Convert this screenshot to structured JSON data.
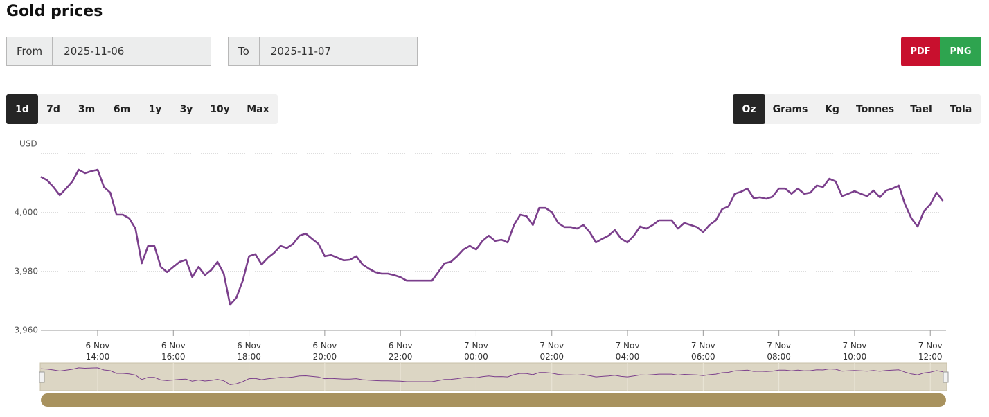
{
  "header": {
    "title": "Gold prices"
  },
  "date_range": {
    "from_label": "From",
    "from_value": "2025-11-06",
    "to_label": "To",
    "to_value": "2025-11-07"
  },
  "export_buttons": [
    "PDF",
    "PNG"
  ],
  "range_buttons": {
    "items": [
      "1d",
      "7d",
      "3m",
      "6m",
      "1y",
      "3y",
      "10y",
      "Max"
    ],
    "selected": 0
  },
  "unit_buttons": {
    "items": [
      "Oz",
      "Grams",
      "Kg",
      "Tonnes",
      "Tael",
      "Tola"
    ],
    "selected": 0
  },
  "chart_data": {
    "type": "line",
    "y_label": "USD",
    "color": "#7b3f8c",
    "grid": true,
    "ylim": [
      3960,
      4020
    ],
    "yticks": [
      {
        "value": 3960,
        "label": "3,960"
      },
      {
        "value": 3980,
        "label": "3,980"
      },
      {
        "value": 4000,
        "label": "4,000"
      }
    ],
    "xlim": [
      "2025-11-06T12:30",
      "2025-11-07T12:25"
    ],
    "xticks": [
      {
        "value": "2025-11-06T14:00",
        "label": "6 Nov\n14:00"
      },
      {
        "value": "2025-11-06T16:00",
        "label": "6 Nov\n16:00"
      },
      {
        "value": "2025-11-06T18:00",
        "label": "6 Nov\n18:00"
      },
      {
        "value": "2025-11-06T20:00",
        "label": "6 Nov\n20:00"
      },
      {
        "value": "2025-11-06T22:00",
        "label": "6 Nov\n22:00"
      },
      {
        "value": "2025-11-07T00:00",
        "label": "7 Nov\n00:00"
      },
      {
        "value": "2025-11-07T02:00",
        "label": "7 Nov\n02:00"
      },
      {
        "value": "2025-11-07T04:00",
        "label": "7 Nov\n04:00"
      },
      {
        "value": "2025-11-07T06:00",
        "label": "7 Nov\n06:00"
      },
      {
        "value": "2025-11-07T08:00",
        "label": "7 Nov\n08:00"
      },
      {
        "value": "2025-11-07T10:00",
        "label": "7 Nov\n10:00"
      },
      {
        "value": "2025-11-07T12:00",
        "label": "7 Nov\n12:00"
      }
    ],
    "x": [
      "2025-11-06T12:30",
      "2025-11-06T12:40",
      "2025-11-06T12:50",
      "2025-11-06T13:00",
      "2025-11-06T13:10",
      "2025-11-06T13:20",
      "2025-11-06T13:30",
      "2025-11-06T13:40",
      "2025-11-06T13:50",
      "2025-11-06T14:00",
      "2025-11-06T14:10",
      "2025-11-06T14:20",
      "2025-11-06T14:30",
      "2025-11-06T14:40",
      "2025-11-06T14:50",
      "2025-11-06T15:00",
      "2025-11-06T15:10",
      "2025-11-06T15:20",
      "2025-11-06T15:30",
      "2025-11-06T15:40",
      "2025-11-06T15:50",
      "2025-11-06T16:00",
      "2025-11-06T16:10",
      "2025-11-06T16:20",
      "2025-11-06T16:30",
      "2025-11-06T16:40",
      "2025-11-06T16:50",
      "2025-11-06T17:00",
      "2025-11-06T17:10",
      "2025-11-06T17:20",
      "2025-11-06T17:30",
      "2025-11-06T17:40",
      "2025-11-06T17:50",
      "2025-11-06T18:00",
      "2025-11-06T18:10",
      "2025-11-06T18:20",
      "2025-11-06T18:30",
      "2025-11-06T18:40",
      "2025-11-06T18:50",
      "2025-11-06T19:00",
      "2025-11-06T19:10",
      "2025-11-06T19:20",
      "2025-11-06T19:30",
      "2025-11-06T19:40",
      "2025-11-06T19:50",
      "2025-11-06T20:00",
      "2025-11-06T20:10",
      "2025-11-06T20:20",
      "2025-11-06T20:30",
      "2025-11-06T20:40",
      "2025-11-06T20:50",
      "2025-11-06T21:00",
      "2025-11-06T21:10",
      "2025-11-06T21:20",
      "2025-11-06T21:30",
      "2025-11-06T21:40",
      "2025-11-06T21:50",
      "2025-11-06T22:00",
      "2025-11-06T22:10",
      "2025-11-06T22:20",
      "2025-11-06T22:30",
      "2025-11-06T22:40",
      "2025-11-06T22:50",
      "2025-11-06T23:00",
      "2025-11-06T23:10",
      "2025-11-06T23:20",
      "2025-11-06T23:30",
      "2025-11-06T23:40",
      "2025-11-06T23:50",
      "2025-11-07T00:00",
      "2025-11-07T00:10",
      "2025-11-07T00:20",
      "2025-11-07T00:30",
      "2025-11-07T00:40",
      "2025-11-07T00:50",
      "2025-11-07T01:00",
      "2025-11-07T01:10",
      "2025-11-07T01:20",
      "2025-11-07T01:30",
      "2025-11-07T01:40",
      "2025-11-07T01:50",
      "2025-11-07T02:00",
      "2025-11-07T02:10",
      "2025-11-07T02:20",
      "2025-11-07T02:30",
      "2025-11-07T02:40",
      "2025-11-07T02:50",
      "2025-11-07T03:00",
      "2025-11-07T03:10",
      "2025-11-07T03:20",
      "2025-11-07T03:30",
      "2025-11-07T03:40",
      "2025-11-07T03:50",
      "2025-11-07T04:00",
      "2025-11-07T04:10",
      "2025-11-07T04:20",
      "2025-11-07T04:30",
      "2025-11-07T04:40",
      "2025-11-07T04:50",
      "2025-11-07T05:00",
      "2025-11-07T05:10",
      "2025-11-07T05:20",
      "2025-11-07T05:30",
      "2025-11-07T05:40",
      "2025-11-07T05:50",
      "2025-11-07T06:00",
      "2025-11-07T06:10",
      "2025-11-07T06:20",
      "2025-11-07T06:30",
      "2025-11-07T06:40",
      "2025-11-07T06:50",
      "2025-11-07T07:00",
      "2025-11-07T07:10",
      "2025-11-07T07:20",
      "2025-11-07T07:30",
      "2025-11-07T07:40",
      "2025-11-07T07:50",
      "2025-11-07T08:00",
      "2025-11-07T08:10",
      "2025-11-07T08:20",
      "2025-11-07T08:30",
      "2025-11-07T08:40",
      "2025-11-07T08:50",
      "2025-11-07T09:00",
      "2025-11-07T09:10",
      "2025-11-07T09:20",
      "2025-11-07T09:30",
      "2025-11-07T09:40",
      "2025-11-07T09:50",
      "2025-11-07T10:00",
      "2025-11-07T10:10",
      "2025-11-07T10:20",
      "2025-11-07T10:30",
      "2025-11-07T10:40",
      "2025-11-07T10:50",
      "2025-11-07T11:00",
      "2025-11-07T11:10",
      "2025-11-07T11:20",
      "2025-11-07T11:30",
      "2025-11-07T11:40",
      "2025-11-07T11:50",
      "2025-11-07T12:00",
      "2025-11-07T12:10",
      "2025-11-07T12:20"
    ],
    "values": [
      4012.2,
      4011,
      4008.7,
      4005.9,
      4008.2,
      4010.6,
      4014.6,
      4013.4,
      4014.1,
      4014.6,
      4008.7,
      4006.8,
      3999.3,
      3999.3,
      3998.1,
      3994.6,
      3982.8,
      3988.7,
      3988.7,
      3981.6,
      3979.8,
      3981.6,
      3983.3,
      3984,
      3978.1,
      3981.6,
      3978.8,
      3980.5,
      3983.3,
      3979.3,
      3968.7,
      3971.1,
      3976.9,
      3985.2,
      3985.9,
      3982.4,
      3984.7,
      3986.4,
      3988.7,
      3988,
      3989.4,
      3992.2,
      3992.9,
      3991.1,
      3989.4,
      3985.2,
      3985.6,
      3984.7,
      3983.8,
      3984,
      3985.2,
      3982.4,
      3981,
      3979.8,
      3979.3,
      3979.3,
      3978.8,
      3978.1,
      3976.9,
      3976.9,
      3976.9,
      3976.9,
      3976.9,
      3979.8,
      3982.8,
      3983.3,
      3985.2,
      3987.5,
      3988.7,
      3987.5,
      3990.4,
      3992.2,
      3990.4,
      3990.8,
      3989.9,
      3995.8,
      3999.3,
      3998.8,
      3995.8,
      4001.6,
      4001.6,
      4000.2,
      3996.5,
      3995.1,
      3995.1,
      3994.6,
      3995.8,
      3993.4,
      3989.9,
      3991.1,
      3992.2,
      3994.1,
      3991.1,
      3989.9,
      3992.2,
      3995.3,
      3994.6,
      3995.8,
      3997.4,
      3997.4,
      3997.4,
      3994.6,
      3996.5,
      3995.8,
      3995.1,
      3993.4,
      3995.8,
      3997.4,
      4001.2,
      4002.1,
      4006.4,
      4007.1,
      4008.2,
      4004.9,
      4005.2,
      4004.7,
      4005.4,
      4008.2,
      4008.2,
      4006.4,
      4008.2,
      4006.4,
      4006.8,
      4009.2,
      4008.7,
      4011.5,
      4010.6,
      4005.6,
      4006.4,
      4007.3,
      4006.4,
      4005.6,
      4007.5,
      4005.2,
      4007.5,
      4008.2,
      4009.2,
      4002.8,
      3998.1,
      3995.3,
      4000.5,
      4002.8,
      4006.8,
      4004
    ]
  }
}
